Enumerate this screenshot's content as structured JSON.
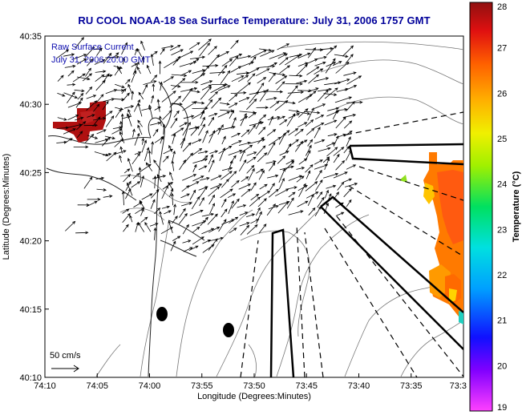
{
  "title": "RU COOL   NOAA-18  Sea Surface Temperature:  July 31, 2006 1757 GMT",
  "inset": {
    "line1": "Raw Surface Current",
    "line2": "July 31, 2006 20:00 GMT"
  },
  "scale_label": "50 cm/s",
  "axes": {
    "xlabel": "Longitude (Degrees:Minutes)",
    "ylabel": "Latitude (Degrees:Minutes)",
    "x_ticks": [
      "74:10",
      "74:05",
      "74:00",
      "73:55",
      "73:50",
      "73:45",
      "73:40",
      "73:35",
      "73:3"
    ],
    "y_ticks": [
      "40:35",
      "40:30",
      "40:25",
      "40:20",
      "40:15",
      "40:10"
    ]
  },
  "colorbar": {
    "label": "Temperature (°C)",
    "ticks": [
      "28",
      "27",
      "26",
      "25",
      "24",
      "23",
      "22",
      "21",
      "20",
      "19"
    ],
    "range": [
      19,
      28
    ]
  },
  "colors": {
    "title": "#00009a",
    "inset_text": "#1010b0",
    "hot": "#b01010",
    "warm": "#ff7a00"
  }
}
